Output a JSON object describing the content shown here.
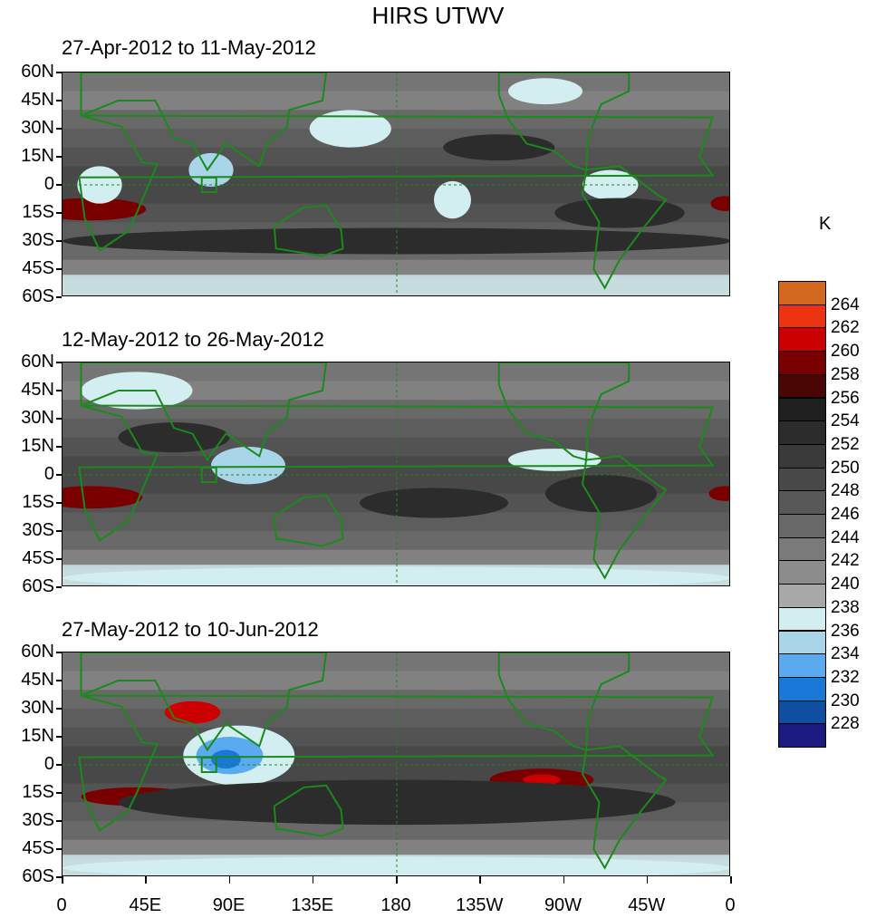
{
  "title": "HIRS UTWV",
  "panels": [
    {
      "period": "27-Apr-2012 to 11-May-2012"
    },
    {
      "period": "12-May-2012 to 26-May-2012"
    },
    {
      "period": "27-May-2012 to 10-Jun-2012"
    }
  ],
  "lat_labels": [
    "60N",
    "45N",
    "30N",
    "15N",
    "0",
    "15S",
    "30S",
    "45S",
    "60S"
  ],
  "lon_labels": [
    "0",
    "45E",
    "90E",
    "135E",
    "180",
    "135W",
    "90W",
    "45W",
    "0"
  ],
  "colorbar": {
    "unit": "K",
    "levels": [
      "264",
      "262",
      "260",
      "258",
      "256",
      "254",
      "252",
      "250",
      "248",
      "246",
      "244",
      "242",
      "240",
      "238",
      "236",
      "234",
      "232",
      "230",
      "228"
    ],
    "colors": [
      "#d2691e",
      "#ee3311",
      "#cc0000",
      "#7a0000",
      "#4a0505",
      "#1f1f1f",
      "#2c2c2c",
      "#3a3a3a",
      "#484848",
      "#585858",
      "#686868",
      "#7a7a7a",
      "#8c8c8c",
      "#a8a8a8",
      "#d2eef0",
      "#a8d6e8",
      "#5aaaf0",
      "#1a78d8",
      "#0f4fa0",
      "#1a1a80"
    ]
  },
  "map": {
    "type": "filled contour map",
    "variable": "upper tropospheric water vapor brightness temperature",
    "units": "K",
    "lat_range": [
      -60,
      60
    ],
    "lon_range": [
      0,
      360
    ],
    "coastline_color": "#1a8a1a"
  }
}
